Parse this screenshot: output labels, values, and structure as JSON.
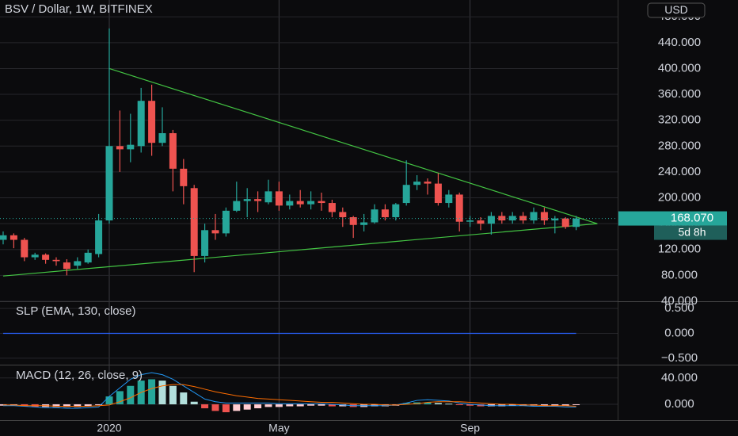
{
  "chart_data": [
    {
      "type": "candlestick",
      "title": "BSV / Dollar, 1W, BITFINEX",
      "currency": "USD",
      "countdown": "5d 8h",
      "categories": [
        null,
        null,
        null,
        null,
        null,
        null,
        null,
        null,
        null,
        null,
        "2020",
        null,
        null,
        null,
        null,
        null,
        null,
        null,
        null,
        null,
        null,
        null,
        null,
        null,
        null,
        null,
        "May",
        null,
        null,
        null,
        null,
        null,
        null,
        null,
        null,
        null,
        null,
        null,
        null,
        null,
        null,
        null,
        null,
        null,
        "Sep",
        null,
        null,
        null,
        null,
        null,
        null,
        null,
        null,
        null,
        null
      ],
      "open": [
        135,
        142,
        135,
        108,
        112,
        104,
        100,
        95,
        100,
        113,
        165,
        280,
        275,
        280,
        350,
        285,
        300,
        245,
        215,
        110,
        150,
        145,
        180,
        195,
        198,
        193,
        210,
        188,
        195,
        190,
        195,
        192,
        178,
        170,
        158,
        162,
        182,
        170,
        192,
        220,
        225,
        222,
        192,
        205,
        163,
        165,
        160,
        172,
        165,
        172,
        165,
        178,
        165,
        168,
        155
      ],
      "high": [
        148,
        145,
        138,
        115,
        114,
        108,
        105,
        108,
        120,
        175,
        462,
        335,
        330,
        370,
        375,
        340,
        305,
        260,
        220,
        160,
        175,
        185,
        225,
        215,
        210,
        228,
        225,
        205,
        212,
        210,
        208,
        197,
        185,
        172,
        175,
        190,
        190,
        192,
        258,
        235,
        230,
        238,
        212,
        208,
        172,
        170,
        178,
        178,
        178,
        178,
        185,
        185,
        172,
        170,
        172
      ],
      "low": [
        128,
        122,
        102,
        104,
        98,
        95,
        80,
        90,
        98,
        108,
        160,
        240,
        255,
        270,
        265,
        280,
        210,
        190,
        85,
        100,
        135,
        140,
        178,
        170,
        178,
        190,
        180,
        182,
        185,
        182,
        180,
        170,
        155,
        138,
        148,
        160,
        165,
        165,
        188,
        212,
        205,
        188,
        185,
        148,
        155,
        150,
        143,
        160,
        160,
        160,
        160,
        158,
        145,
        152,
        150
      ],
      "close": [
        142,
        135,
        108,
        112,
        104,
        102,
        90,
        102,
        115,
        165,
        280,
        275,
        282,
        350,
        285,
        300,
        245,
        218,
        110,
        150,
        145,
        180,
        195,
        198,
        195,
        210,
        188,
        195,
        190,
        195,
        192,
        178,
        170,
        158,
        162,
        182,
        170,
        190,
        220,
        225,
        222,
        192,
        205,
        163,
        165,
        160,
        172,
        165,
        172,
        165,
        178,
        165,
        168,
        155,
        168.07
      ],
      "up_color": "#26a69a",
      "down_color": "#ef5350",
      "last_price": {
        "value": 168.07,
        "label": "168.070"
      },
      "trendlines": [
        {
          "x": [
            10,
            56
          ],
          "y": [
            400,
            160
          ],
          "color": "#43c443"
        },
        {
          "x": [
            0,
            56
          ],
          "y": [
            79,
            160
          ],
          "color": "#43c443"
        }
      ],
      "ylim": [
        40,
        506
      ],
      "yticks": [
        {
          "value": 40,
          "label": "40.000"
        },
        {
          "value": 80,
          "label": "80.000"
        },
        {
          "value": 120,
          "label": "120.000"
        },
        {
          "value": 160,
          "label": "160.000"
        },
        {
          "value": 200,
          "label": "200.000"
        },
        {
          "value": 240,
          "label": "240.000"
        },
        {
          "value": 280,
          "label": "280.000"
        },
        {
          "value": 320,
          "label": "320.000"
        },
        {
          "value": 360,
          "label": "360.000"
        },
        {
          "value": 400,
          "label": "400.000"
        },
        {
          "value": 440,
          "label": "440.000"
        },
        {
          "value": 480,
          "label": "480.000"
        }
      ],
      "grid": true
    },
    {
      "type": "line",
      "title": "SLP (EMA, 130, close)",
      "color": "#2962ff",
      "values": [
        0,
        0,
        0,
        0,
        0,
        0,
        0,
        0,
        0,
        0,
        0,
        0,
        0,
        0,
        0,
        0,
        0,
        0,
        0,
        0,
        0,
        0,
        0,
        0,
        0,
        0,
        0,
        0,
        0,
        0,
        0,
        0,
        0,
        0,
        0,
        0,
        0,
        0,
        0,
        0,
        0,
        0,
        0,
        0,
        0,
        0,
        0,
        0,
        0,
        0,
        0,
        0,
        0,
        0,
        0
      ],
      "ylim": [
        -0.63,
        0.63
      ],
      "yticks": [
        {
          "value": -0.5,
          "label": "−0.500"
        },
        {
          "value": 0,
          "label": "0.000"
        },
        {
          "value": 0.5,
          "label": "0.500"
        }
      ],
      "grid": true
    },
    {
      "type": "macd",
      "title": "MACD (12, 26, close, 9)",
      "histogram": [
        -2,
        -2,
        -3,
        -4,
        -4,
        -4,
        -4,
        -4,
        -3,
        -1,
        12,
        20,
        28,
        36,
        38,
        36,
        28,
        18,
        4,
        -6,
        -10,
        -12,
        -10,
        -8,
        -6,
        -4,
        -4,
        -3,
        -3,
        -2,
        -2,
        -3,
        -3,
        -4,
        -4,
        -3,
        -3,
        -2,
        2,
        3,
        3,
        2,
        1,
        -1,
        -2,
        -3,
        -3,
        -3,
        -2,
        -2,
        -2,
        -2,
        -2,
        -2,
        -1
      ],
      "histogram_colors": [
        "#26a69a",
        "#b2dfdb",
        "#ffcdd2",
        "#ef5350"
      ],
      "series": [
        {
          "color": "#2196f3",
          "values": [
            -2,
            -2,
            -3,
            -4,
            -5,
            -5,
            -6,
            -6,
            -5,
            -4,
            12,
            25,
            38,
            45,
            48,
            45,
            38,
            28,
            18,
            8,
            4,
            2,
            2,
            2,
            2,
            2,
            1,
            1,
            1,
            1,
            1,
            0,
            -1,
            -2,
            -2,
            -2,
            -2,
            -1,
            2,
            6,
            7,
            6,
            5,
            2,
            0,
            -1,
            -2,
            -2,
            -2,
            -2,
            -3,
            -3,
            -3,
            -4,
            -4
          ]
        },
        {
          "color": "#ff6d00",
          "values": [
            -1,
            -1,
            -2,
            -2,
            -2,
            -3,
            -3,
            -3,
            -3,
            -2,
            -1,
            4,
            10,
            18,
            24,
            28,
            30,
            30,
            27,
            23,
            19,
            16,
            13,
            11,
            9,
            8,
            7,
            6,
            5,
            4,
            3,
            3,
            2,
            1,
            0,
            0,
            -1,
            -1,
            0,
            1,
            3,
            4,
            4,
            4,
            3,
            2,
            1,
            0,
            0,
            -1,
            -1,
            -2,
            -2,
            -2,
            -3
          ]
        }
      ],
      "ylim": [
        -24,
        59
      ],
      "yticks": [
        {
          "value": 0,
          "label": "0.000"
        },
        {
          "value": 40,
          "label": "40.000"
        }
      ],
      "grid": true
    }
  ]
}
